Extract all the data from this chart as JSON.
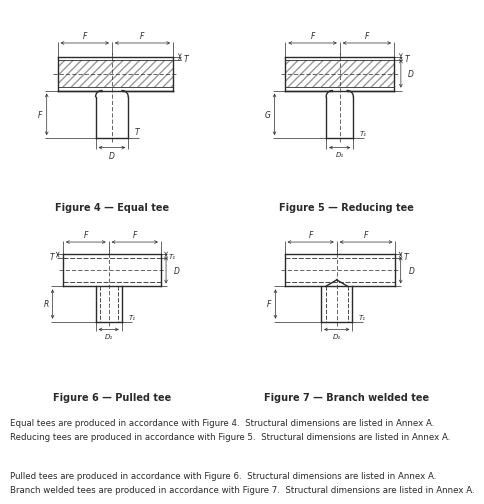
{
  "fig_width": 4.74,
  "fig_height": 5.14,
  "dpi": 100,
  "bg_color": "#ffffff",
  "line_color": "#2a2a2a",
  "figure_captions": [
    "Figure 4 — Equal tee",
    "Figure 5 — Reducing tee",
    "Figure 6 — Pulled tee",
    "Figure 7 — Branch welded tee"
  ],
  "body_texts": [
    "Equal tees are produced in accordance with Figure 4.  Structural dimensions are listed in Annex A.",
    "Reducing tees are produced in accordance with Figure 5.  Structural dimensions are listed in Annex A.",
    "Pulled tees are produced in accordance with Figure 6.  Structural dimensions are listed in Annex A.",
    "Branch welded tees are produced in accordance with Figure 7.  Structural dimensions are listed in Annex A."
  ]
}
